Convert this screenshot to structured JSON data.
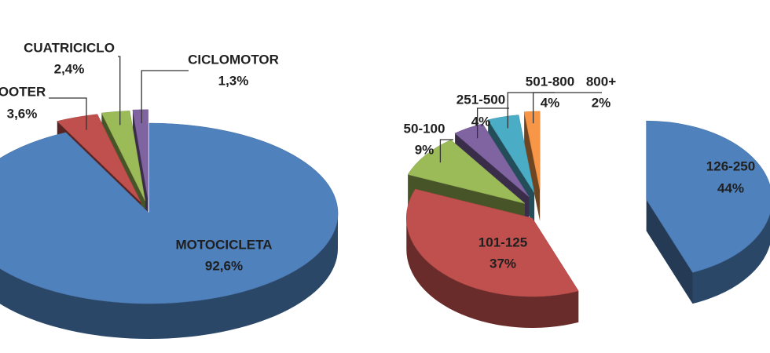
{
  "chart_data": [
    {
      "type": "pie",
      "categories": [
        "MOTOCICLETA",
        "OOTER",
        "CUATRICICLO",
        "CICLOMOTOR"
      ],
      "values": [
        92.6,
        3.6,
        2.4,
        1.3
      ],
      "value_labels": [
        "92,6%",
        "3,6%",
        "2,4%",
        "1,3%"
      ],
      "colors": [
        "#4f81bd",
        "#c0504d",
        "#9bbb59",
        "#8064a2"
      ]
    },
    {
      "type": "pie",
      "categories": [
        "126-250",
        "101-125",
        "50-100",
        "251-500",
        "501-800",
        "800+"
      ],
      "values": [
        44,
        37,
        9,
        4,
        4,
        2
      ],
      "value_labels": [
        "44%",
        "37%",
        "9%",
        "4%",
        "4%",
        "2%"
      ],
      "colors": [
        "#4f81bd",
        "#c0504d",
        "#9bbb59",
        "#8064a2",
        "#4bacc6",
        "#f79646"
      ]
    }
  ]
}
